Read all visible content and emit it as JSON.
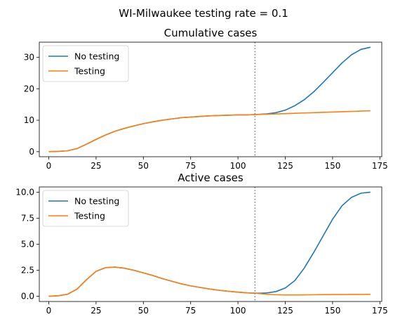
{
  "suptitle": "WI-Milwaukee testing rate = 0.1",
  "colors": {
    "no_testing": "#1f77b4",
    "testing": "#ff7f0e",
    "vline": "#808080",
    "axis": "#000000"
  },
  "chart_data": [
    {
      "type": "line",
      "title": "Cumulative cases",
      "xlabel": "",
      "ylabel": "",
      "xlim": [
        -5,
        176
      ],
      "ylim": [
        -1.6,
        34.8
      ],
      "xticks": [
        0,
        25,
        50,
        75,
        100,
        125,
        150,
        175
      ],
      "yticks": [
        0,
        10,
        20,
        30
      ],
      "vline_x": 109,
      "legend": "top-left",
      "grid": false,
      "series": [
        {
          "name": "No testing",
          "key": "no_testing",
          "x": [
            0,
            5,
            10,
            15,
            20,
            25,
            30,
            35,
            40,
            45,
            50,
            55,
            60,
            65,
            70,
            75,
            80,
            85,
            90,
            95,
            100,
            105,
            109,
            112,
            115,
            120,
            125,
            130,
            135,
            140,
            145,
            150,
            155,
            160,
            165,
            170
          ],
          "y": [
            0.0,
            0.1,
            0.3,
            1.0,
            2.4,
            3.9,
            5.3,
            6.5,
            7.4,
            8.2,
            8.9,
            9.5,
            10.0,
            10.4,
            10.8,
            11.0,
            11.2,
            11.4,
            11.5,
            11.6,
            11.7,
            11.7,
            11.8,
            11.9,
            12.0,
            12.4,
            13.2,
            14.6,
            16.5,
            19.0,
            22.0,
            25.1,
            28.2,
            30.8,
            32.5,
            33.2
          ]
        },
        {
          "name": "Testing",
          "key": "testing",
          "x": [
            0,
            5,
            10,
            15,
            20,
            25,
            30,
            35,
            40,
            45,
            50,
            55,
            60,
            65,
            70,
            75,
            80,
            85,
            90,
            95,
            100,
            105,
            109,
            115,
            120,
            125,
            130,
            135,
            140,
            145,
            150,
            155,
            160,
            165,
            170
          ],
          "y": [
            0.0,
            0.1,
            0.3,
            1.0,
            2.4,
            3.9,
            5.3,
            6.5,
            7.4,
            8.2,
            8.9,
            9.5,
            10.0,
            10.4,
            10.8,
            11.0,
            11.2,
            11.4,
            11.5,
            11.6,
            11.7,
            11.7,
            11.8,
            11.9,
            12.0,
            12.1,
            12.2,
            12.3,
            12.4,
            12.5,
            12.6,
            12.7,
            12.8,
            12.9,
            13.0
          ]
        }
      ]
    },
    {
      "type": "line",
      "title": "Active cases",
      "xlabel": "",
      "ylabel": "",
      "xlim": [
        -5,
        176
      ],
      "ylim": [
        -0.5,
        10.5
      ],
      "xticks": [
        0,
        25,
        50,
        75,
        100,
        125,
        150,
        175
      ],
      "yticks": [
        0.0,
        2.5,
        5.0,
        7.5,
        10.0
      ],
      "ytick_labels": [
        "0.0",
        "2.5",
        "5.0",
        "7.5",
        "10.0"
      ],
      "vline_x": 109,
      "legend": "top-left",
      "grid": false,
      "series": [
        {
          "name": "No testing",
          "key": "no_testing",
          "x": [
            0,
            5,
            10,
            15,
            20,
            25,
            30,
            35,
            40,
            45,
            50,
            55,
            60,
            65,
            70,
            75,
            80,
            85,
            90,
            95,
            100,
            105,
            109,
            112,
            115,
            120,
            125,
            130,
            135,
            140,
            145,
            150,
            155,
            160,
            165,
            170
          ],
          "y": [
            0.0,
            0.05,
            0.2,
            0.7,
            1.6,
            2.4,
            2.75,
            2.8,
            2.7,
            2.5,
            2.25,
            2.0,
            1.7,
            1.45,
            1.2,
            1.0,
            0.85,
            0.7,
            0.58,
            0.48,
            0.4,
            0.33,
            0.3,
            0.3,
            0.32,
            0.45,
            0.8,
            1.5,
            2.7,
            4.2,
            5.8,
            7.4,
            8.7,
            9.5,
            9.9,
            10.0
          ]
        },
        {
          "name": "Testing",
          "key": "testing",
          "x": [
            0,
            5,
            10,
            15,
            20,
            25,
            30,
            35,
            40,
            45,
            50,
            55,
            60,
            65,
            70,
            75,
            80,
            85,
            90,
            95,
            100,
            105,
            109,
            115,
            120,
            125,
            130,
            135,
            140,
            145,
            150,
            155,
            160,
            165,
            170
          ],
          "y": [
            0.0,
            0.05,
            0.2,
            0.7,
            1.6,
            2.4,
            2.75,
            2.8,
            2.7,
            2.5,
            2.25,
            2.0,
            1.7,
            1.45,
            1.2,
            1.0,
            0.85,
            0.7,
            0.58,
            0.48,
            0.4,
            0.33,
            0.3,
            0.2,
            0.15,
            0.13,
            0.13,
            0.14,
            0.15,
            0.16,
            0.17,
            0.17,
            0.18,
            0.18,
            0.19
          ]
        }
      ]
    }
  ]
}
